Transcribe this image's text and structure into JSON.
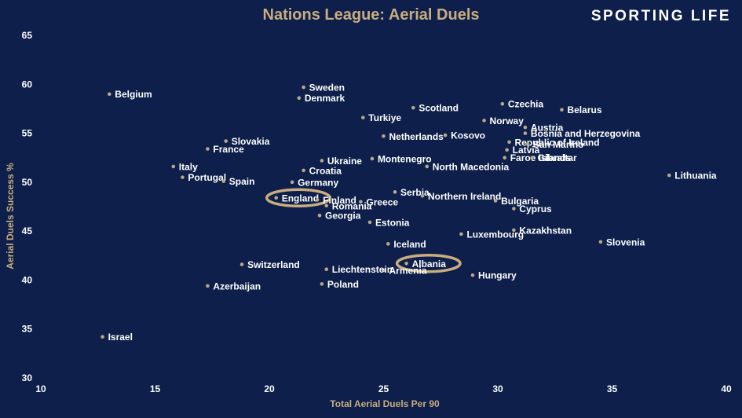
{
  "header": {
    "title": "Nations League: Aerial Duels",
    "brand": "SPORTING LIFE"
  },
  "colors": {
    "background": "#0d1f4a",
    "gold": "#c9ad7f",
    "text": "#ffffff",
    "point": "#b8a88a"
  },
  "chart_data": {
    "type": "scatter",
    "title": "Nations League: Aerial Duels",
    "xlabel": "Total Aerial Duels Per 90",
    "ylabel": "Aerial Duels Success %",
    "xlim": [
      10,
      40
    ],
    "ylim": [
      30,
      65
    ],
    "xticks": [
      10,
      15,
      20,
      25,
      30,
      35,
      40
    ],
    "yticks": [
      30,
      35,
      40,
      45,
      50,
      55,
      60,
      65
    ],
    "grid": false,
    "highlighted": [
      "England",
      "Albania"
    ],
    "points": [
      {
        "name": "Belgium",
        "x": 13.0,
        "y": 59.0
      },
      {
        "name": "Israel",
        "x": 12.7,
        "y": 34.2
      },
      {
        "name": "Sweden",
        "x": 21.5,
        "y": 59.7
      },
      {
        "name": "Denmark",
        "x": 21.3,
        "y": 58.6
      },
      {
        "name": "Scotland",
        "x": 26.3,
        "y": 57.6
      },
      {
        "name": "Czechia",
        "x": 30.2,
        "y": 58.0
      },
      {
        "name": "Belarus",
        "x": 32.8,
        "y": 57.4
      },
      {
        "name": "Turkiye",
        "x": 24.1,
        "y": 56.6
      },
      {
        "name": "Norway",
        "x": 29.4,
        "y": 56.3
      },
      {
        "name": "Austria",
        "x": 31.2,
        "y": 55.6
      },
      {
        "name": "Bosnia and Herzegovina",
        "x": 31.2,
        "y": 55.0
      },
      {
        "name": "Netherlands",
        "x": 25.0,
        "y": 54.7
      },
      {
        "name": "Kosovo",
        "x": 27.7,
        "y": 54.8
      },
      {
        "name": "Republic of Ireland",
        "x": 30.5,
        "y": 54.1
      },
      {
        "name": "San Marino",
        "x": 31.3,
        "y": 53.9
      },
      {
        "name": "Slovakia",
        "x": 18.1,
        "y": 54.2
      },
      {
        "name": "France",
        "x": 17.3,
        "y": 53.4
      },
      {
        "name": "Latvia",
        "x": 30.4,
        "y": 53.3
      },
      {
        "name": "Faroe Islands",
        "x": 30.3,
        "y": 52.5
      },
      {
        "name": "Gibraltar",
        "x": 31.5,
        "y": 52.5
      },
      {
        "name": "Ukraine",
        "x": 22.3,
        "y": 52.2
      },
      {
        "name": "Montenegro",
        "x": 24.5,
        "y": 52.4
      },
      {
        "name": "North Macedonia",
        "x": 26.9,
        "y": 51.6
      },
      {
        "name": "Italy",
        "x": 15.8,
        "y": 51.6
      },
      {
        "name": "Croatia",
        "x": 21.5,
        "y": 51.2
      },
      {
        "name": "Portugal",
        "x": 16.2,
        "y": 50.5
      },
      {
        "name": "Spain",
        "x": 18.0,
        "y": 50.1
      },
      {
        "name": "Germany",
        "x": 21.0,
        "y": 50.0
      },
      {
        "name": "Lithuania",
        "x": 37.5,
        "y": 50.7
      },
      {
        "name": "Serbia",
        "x": 25.5,
        "y": 49.0
      },
      {
        "name": "Northern Ireland",
        "x": 26.7,
        "y": 48.6
      },
      {
        "name": "England",
        "x": 20.3,
        "y": 48.4
      },
      {
        "name": "Finland",
        "x": 22.1,
        "y": 48.2
      },
      {
        "name": "Greece",
        "x": 24.0,
        "y": 48.0
      },
      {
        "name": "Bulgaria",
        "x": 29.9,
        "y": 48.1
      },
      {
        "name": "Romania",
        "x": 22.5,
        "y": 47.6
      },
      {
        "name": "Cyprus",
        "x": 30.7,
        "y": 47.3
      },
      {
        "name": "Georgia",
        "x": 22.2,
        "y": 46.6
      },
      {
        "name": "Estonia",
        "x": 24.4,
        "y": 45.9
      },
      {
        "name": "Kazakhstan",
        "x": 30.7,
        "y": 45.1
      },
      {
        "name": "Luxembourg",
        "x": 28.4,
        "y": 44.7
      },
      {
        "name": "Slovenia",
        "x": 34.5,
        "y": 43.9
      },
      {
        "name": "Iceland",
        "x": 25.2,
        "y": 43.7
      },
      {
        "name": "Albania",
        "x": 26.0,
        "y": 41.7
      },
      {
        "name": "Armenia",
        "x": 25.0,
        "y": 41.0
      },
      {
        "name": "Switzerland",
        "x": 18.8,
        "y": 41.6
      },
      {
        "name": "Liechtenstein",
        "x": 22.5,
        "y": 41.1
      },
      {
        "name": "Hungary",
        "x": 28.9,
        "y": 40.5
      },
      {
        "name": "Poland",
        "x": 22.3,
        "y": 39.6
      },
      {
        "name": "Azerbaijan",
        "x": 17.3,
        "y": 39.4
      }
    ]
  }
}
